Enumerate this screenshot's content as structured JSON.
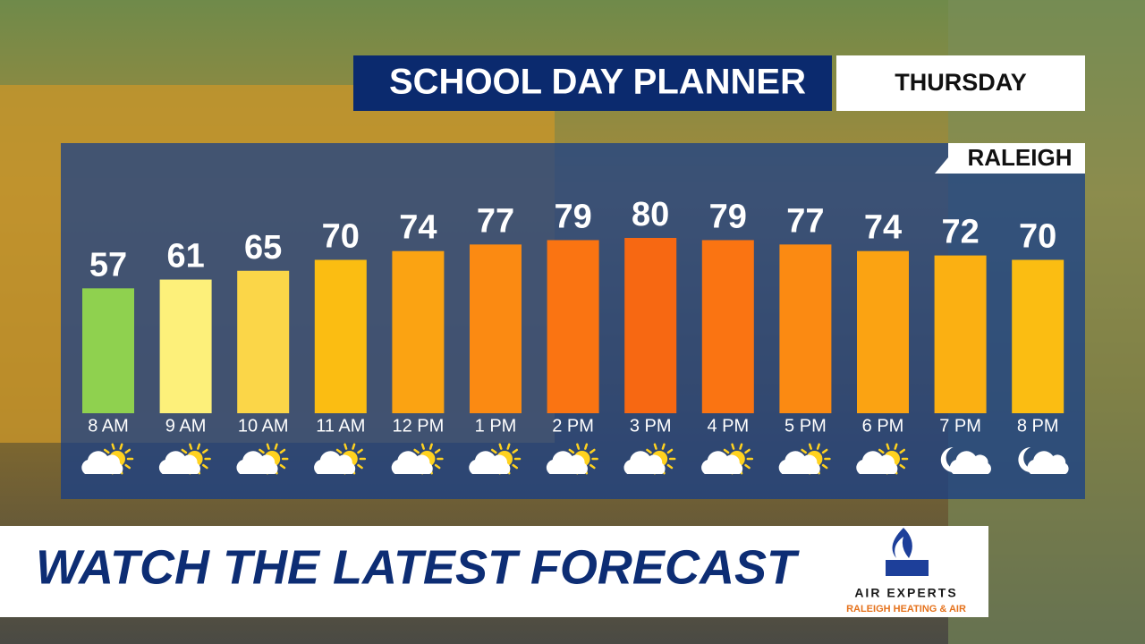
{
  "chart_data": {
    "type": "bar",
    "title": "SCHOOL DAY PLANNER",
    "subtitle": "THURSDAY",
    "location": "RALEIGH",
    "categories": [
      "8 AM",
      "9 AM",
      "10 AM",
      "11 AM",
      "12 PM",
      "1 PM",
      "2 PM",
      "3 PM",
      "4 PM",
      "5 PM",
      "6 PM",
      "7 PM",
      "8 PM"
    ],
    "values": [
      57,
      61,
      65,
      70,
      74,
      77,
      79,
      80,
      79,
      77,
      74,
      72,
      70
    ],
    "colors": [
      "#8fd14f",
      "#fdf07a",
      "#fbd648",
      "#fbbd12",
      "#fba312",
      "#fb8a12",
      "#fa7412",
      "#f76812",
      "#fa7412",
      "#fb8a12",
      "#fba312",
      "#fbb012",
      "#fbbd12"
    ],
    "night": [
      false,
      false,
      false,
      false,
      false,
      false,
      false,
      false,
      false,
      false,
      false,
      true,
      true
    ]
  },
  "banner": {
    "text": "WATCH THE LATEST FORECAST"
  },
  "sponsor": {
    "name": "AIR EXPERTS",
    "tagline": "RALEIGH HEATING & AIR"
  }
}
